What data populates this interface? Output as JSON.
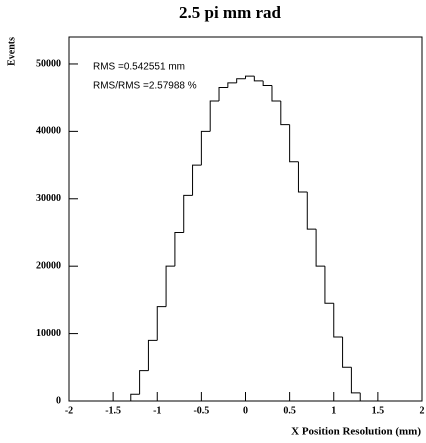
{
  "chart_data": {
    "type": "histogram",
    "title": "2.5 pi mm rad",
    "x_label": "X Position Resolution (mm)",
    "y_label": "Events",
    "annotations": [
      "RMS =0.542551 mm",
      "RMS/RMS =2.57988 %"
    ],
    "bins": [
      -2,
      -1.9,
      -1.8,
      -1.7,
      -1.6,
      -1.5,
      -1.4,
      -1.3,
      -1.2,
      -1.1,
      -1,
      -0.9,
      -0.8,
      -0.7,
      -0.6,
      -0.5,
      -0.4,
      -0.3,
      -0.2,
      -0.1,
      0,
      0.1,
      0.2,
      0.3,
      0.4,
      0.5,
      0.6,
      0.7,
      0.8,
      0.9,
      1,
      1.1,
      1.2,
      1.3,
      1.4,
      1.5,
      1.6,
      1.7,
      1.8,
      1.9,
      2
    ],
    "values": [
      0,
      0,
      0,
      0,
      0,
      0,
      0,
      1000,
      4500,
      9000,
      14000,
      20000,
      25000,
      30500,
      35000,
      40000,
      44500,
      46500,
      47200,
      47800,
      48200,
      47500,
      46800,
      44500,
      41000,
      35500,
      31000,
      25500,
      20000,
      14500,
      9500,
      5000,
      1200,
      0,
      0,
      0,
      0,
      0,
      0,
      0
    ],
    "color": "#000000",
    "xlim": [
      -2,
      2
    ],
    "xticks": [
      -2,
      -1.5,
      -1,
      -0.5,
      0,
      0.5,
      1,
      1.5,
      2
    ],
    "ylim": [
      0,
      54000
    ],
    "yticks": [
      0,
      10000,
      20000,
      30000,
      40000,
      50000
    ]
  }
}
